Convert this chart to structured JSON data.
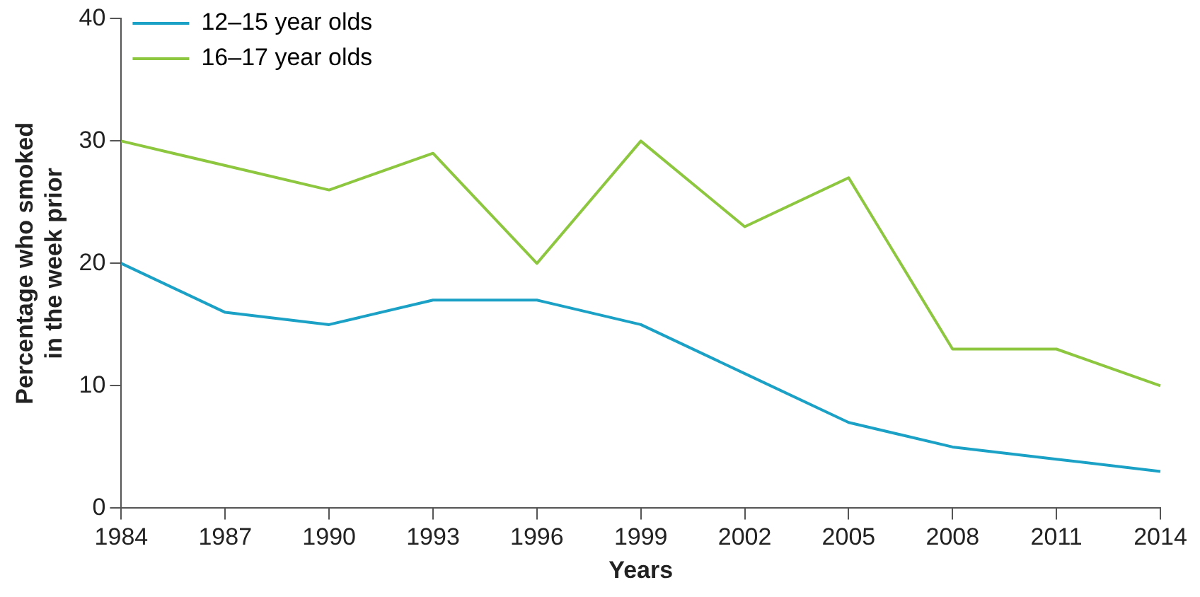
{
  "chart_data": {
    "type": "line",
    "xlabel": "Years",
    "ylabel": "Percentage who smoked\nin the week prior",
    "categories": [
      "1984",
      "1987",
      "1990",
      "1993",
      "1996",
      "1999",
      "2002",
      "2005",
      "2008",
      "2011",
      "2014"
    ],
    "series": [
      {
        "name": "12–15 year olds",
        "color": "#1ba1c5",
        "values": [
          20,
          16,
          15,
          17,
          17,
          15,
          11,
          7,
          5,
          4,
          3
        ]
      },
      {
        "name": "16–17 year olds",
        "color": "#8dc63f",
        "values": [
          30,
          28,
          26,
          29,
          20,
          30,
          23,
          27,
          13,
          13,
          10
        ]
      }
    ],
    "ylim": [
      0,
      40
    ],
    "yticks": [
      0,
      10,
      20,
      30,
      40
    ],
    "grid": false,
    "legend": "top left",
    "marker": "none",
    "line_style": "solid"
  }
}
